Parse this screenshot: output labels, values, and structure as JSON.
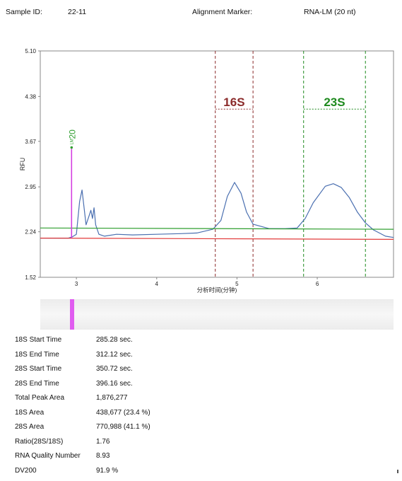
{
  "header": {
    "sample_id_label": "Sample ID:",
    "sample_id_value": "22-11",
    "alignment_marker_label": "Alignment Marker:",
    "alignment_marker_value": "RNA-LM (20 nt)"
  },
  "chart_data": {
    "type": "line",
    "ylabel": "RFU",
    "xlabel": "分析时间(分钟)",
    "xlim": [
      2.55,
      6.95
    ],
    "ylim": [
      1.52,
      5.1
    ],
    "y_ticks": [
      "1.52",
      "2.24",
      "2.95",
      "3.67",
      "4.38",
      "5.10"
    ],
    "x_ticks": [
      "3",
      "4",
      "5",
      "6"
    ],
    "grid": false,
    "series": [
      {
        "color": "#4a6fb0",
        "x": [
          2.55,
          2.9,
          2.95,
          3.0,
          3.04,
          3.07,
          3.12,
          3.16,
          3.18,
          3.2,
          3.22,
          3.24,
          3.28,
          3.35,
          3.5,
          3.7,
          4.0,
          4.3,
          4.5,
          4.7,
          4.8,
          4.88,
          4.97,
          5.05,
          5.12,
          5.2,
          5.4,
          5.6,
          5.75,
          5.85,
          5.95,
          6.1,
          6.2,
          6.3,
          6.4,
          6.5,
          6.6,
          6.7,
          6.85,
          6.95
        ],
        "y": [
          2.14,
          2.14,
          2.16,
          2.2,
          2.72,
          2.9,
          2.35,
          2.5,
          2.58,
          2.45,
          2.62,
          2.35,
          2.2,
          2.17,
          2.2,
          2.19,
          2.2,
          2.21,
          2.22,
          2.28,
          2.42,
          2.8,
          3.02,
          2.85,
          2.55,
          2.36,
          2.29,
          2.29,
          2.3,
          2.45,
          2.7,
          2.96,
          3.0,
          2.94,
          2.78,
          2.55,
          2.38,
          2.27,
          2.17,
          2.15
        ]
      },
      {
        "color": "#2e9e2e",
        "x": [
          2.55,
          6.95
        ],
        "y": [
          2.3,
          2.28
        ]
      },
      {
        "color": "#e23b3b",
        "x": [
          2.55,
          6.95
        ],
        "y": [
          2.14,
          2.12
        ]
      },
      {
        "color": "#d43fe0",
        "x": [
          2.94,
          2.94
        ],
        "y": [
          2.14,
          3.55
        ]
      }
    ],
    "regions": [
      {
        "label": "16S",
        "color": "#8b2b2b",
        "x_start": 4.73,
        "x_end": 5.2,
        "label_y": 4.18
      },
      {
        "label": "23S",
        "color": "#1e8a1e",
        "x_start": 5.83,
        "x_end": 6.6,
        "label_y": 4.18
      }
    ],
    "marker": {
      "label": "20",
      "sub": "LM",
      "color": "#2e9e2e",
      "x": 2.94,
      "y": 3.55
    }
  },
  "stats": [
    {
      "label": "18S Start Time",
      "value": "285.28 sec."
    },
    {
      "label": "18S End Time",
      "value": "312.12 sec."
    },
    {
      "label": "28S Start Time",
      "value": "350.72 sec."
    },
    {
      "label": "28S End Time",
      "value": "396.16 sec."
    },
    {
      "label": "Total Peak Area",
      "value": "1,876,277"
    },
    {
      "label": "18S Area",
      "value": "438,677 (23.4 %)"
    },
    {
      "label": "28S Area",
      "value": "770,988 (41.1 %)"
    },
    {
      "label": "Ratio(28S/18S)",
      "value": "1.76"
    },
    {
      "label": "RNA Quality Number",
      "value": "8.93"
    },
    {
      "label": "DV200",
      "value": "91.9 %"
    }
  ]
}
